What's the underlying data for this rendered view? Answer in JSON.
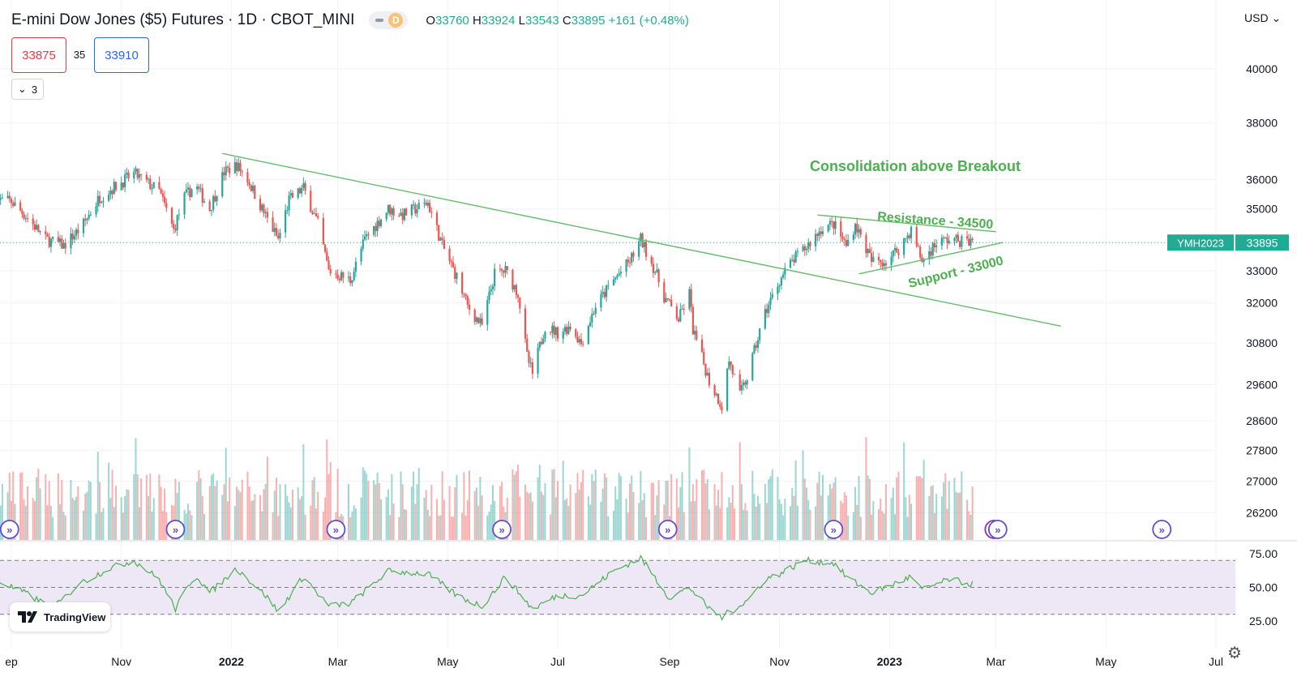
{
  "header": {
    "title": "E-mini Dow Jones ($5) Futures · 1D · CBOT_MINI",
    "badge_letter": "D",
    "ohlc": {
      "o_label": "O",
      "o": "33760",
      "h_label": "H",
      "h": "33924",
      "l_label": "L",
      "l": "33543",
      "c_label": "C",
      "c": "33895",
      "change": "+161 (+0.48%)"
    }
  },
  "trade": {
    "sell_price": "33875",
    "spread": "35",
    "buy_price": "33910"
  },
  "indicators_toggle": {
    "count": "3"
  },
  "currency_label": "USD",
  "settings_icon": "gear-icon",
  "logo": {
    "text": "TradingView"
  },
  "colors": {
    "up": "#26a69a",
    "down": "#ef5350",
    "trend": "#66bb6a",
    "annotation": "#4caf50",
    "price_tag": "#22ab94",
    "sell": "#f23645",
    "buy": "#2962ff",
    "rsi": "#4caf50",
    "rsi_band": "#ede7f6"
  },
  "chart_data": [
    {
      "type": "candlestick",
      "instrument": "YMH2023",
      "last_price": "33895",
      "y_scale": "log",
      "y_ticks": [
        40000,
        38000,
        36000,
        35000,
        33000,
        32000,
        30800,
        29600,
        28600,
        27800,
        27000,
        26200
      ],
      "x_ticks": [
        {
          "date": "2021-09-01",
          "label": "ep"
        },
        {
          "date": "2021-11-01",
          "label": "Nov"
        },
        {
          "date": "2022-01-01",
          "label": "2022",
          "bold": true
        },
        {
          "date": "2022-03-01",
          "label": "Mar"
        },
        {
          "date": "2022-05-01",
          "label": "May"
        },
        {
          "date": "2022-07-01",
          "label": "Jul"
        },
        {
          "date": "2022-09-01",
          "label": "Sep"
        },
        {
          "date": "2022-11-01",
          "label": "Nov"
        },
        {
          "date": "2023-01-01",
          "label": "2023",
          "bold": true
        },
        {
          "date": "2023-03-01",
          "label": "Mar"
        },
        {
          "date": "2023-05-01",
          "label": "May"
        },
        {
          "date": "2023-07-01",
          "label": "Jul"
        }
      ],
      "price_path": [
        [
          "2021-08-24",
          35300
        ],
        [
          "2021-09-01",
          35250
        ],
        [
          "2021-09-10",
          34700
        ],
        [
          "2021-09-20",
          34000
        ],
        [
          "2021-09-30",
          33800
        ],
        [
          "2021-10-10",
          34400
        ],
        [
          "2021-10-20",
          35400
        ],
        [
          "2021-11-01",
          35900
        ],
        [
          "2021-11-08",
          36200
        ],
        [
          "2021-11-15",
          35900
        ],
        [
          "2021-11-22",
          35600
        ],
        [
          "2021-11-30",
          34300
        ],
        [
          "2021-12-06",
          35400
        ],
        [
          "2021-12-12",
          35800
        ],
        [
          "2021-12-20",
          35000
        ],
        [
          "2021-12-28",
          36250
        ],
        [
          "2022-01-04",
          36500
        ],
        [
          "2022-01-10",
          36000
        ],
        [
          "2022-01-18",
          35000
        ],
        [
          "2022-01-27",
          34000
        ],
        [
          "2022-02-02",
          35300
        ],
        [
          "2022-02-10",
          35700
        ],
        [
          "2022-02-18",
          34500
        ],
        [
          "2022-02-24",
          33000
        ],
        [
          "2022-03-08",
          32700
        ],
        [
          "2022-03-16",
          34000
        ],
        [
          "2022-03-29",
          35000
        ],
        [
          "2022-04-06",
          34800
        ],
        [
          "2022-04-20",
          35200
        ],
        [
          "2022-04-28",
          33800
        ],
        [
          "2022-05-06",
          32800
        ],
        [
          "2022-05-12",
          31900
        ],
        [
          "2022-05-20",
          31300
        ],
        [
          "2022-05-27",
          32900
        ],
        [
          "2022-06-02",
          33000
        ],
        [
          "2022-06-09",
          32300
        ],
        [
          "2022-06-14",
          30400
        ],
        [
          "2022-06-17",
          29900
        ],
        [
          "2022-06-24",
          31300
        ],
        [
          "2022-07-01",
          31100
        ],
        [
          "2022-07-08",
          31300
        ],
        [
          "2022-07-14",
          30800
        ],
        [
          "2022-07-22",
          31900
        ],
        [
          "2022-08-01",
          32700
        ],
        [
          "2022-08-10",
          33300
        ],
        [
          "2022-08-16",
          34000
        ],
        [
          "2022-08-24",
          33000
        ],
        [
          "2022-08-29",
          32200
        ],
        [
          "2022-09-06",
          31500
        ],
        [
          "2022-09-12",
          32300
        ],
        [
          "2022-09-14",
          31200
        ],
        [
          "2022-09-23",
          29700
        ],
        [
          "2022-09-30",
          29000
        ],
        [
          "2022-10-04",
          30300
        ],
        [
          "2022-10-10",
          29300
        ],
        [
          "2022-10-14",
          29800
        ],
        [
          "2022-10-24",
          31700
        ],
        [
          "2022-11-01",
          32700
        ],
        [
          "2022-11-08",
          33300
        ],
        [
          "2022-11-15",
          33700
        ],
        [
          "2022-11-25",
          34400
        ],
        [
          "2022-12-01",
          34500
        ],
        [
          "2022-12-08",
          33800
        ],
        [
          "2022-12-13",
          34500
        ],
        [
          "2022-12-22",
          33300
        ],
        [
          "2022-12-30",
          33300
        ],
        [
          "2023-01-06",
          33700
        ],
        [
          "2023-01-13",
          34300
        ],
        [
          "2023-01-19",
          33300
        ],
        [
          "2023-01-27",
          33900
        ],
        [
          "2023-02-03",
          34000
        ],
        [
          "2023-02-10",
          33950
        ],
        [
          "2023-02-17",
          33895
        ]
      ],
      "trendlines": [
        {
          "name": "downtrend",
          "from": [
            "2021-12-27",
            36900
          ],
          "to": [
            "2023-04-06",
            31300
          ]
        },
        {
          "name": "resistance",
          "from": [
            "2022-11-22",
            34800
          ],
          "to": [
            "2023-03-01",
            34250
          ]
        },
        {
          "name": "support",
          "from": [
            "2022-12-15",
            32900
          ],
          "to": [
            "2023-03-05",
            33900
          ]
        }
      ],
      "annotations": {
        "headline": "Consolidation above Breakout",
        "resistance": "Resistance - 34500",
        "support": "Support - 33000"
      },
      "event_markers": [
        {
          "date": "2021-08-31",
          "kind": "dividend"
        },
        {
          "date": "2021-12-01",
          "kind": "dividend"
        },
        {
          "date": "2022-02-28",
          "kind": "dividend"
        },
        {
          "date": "2022-05-31",
          "kind": "dividend"
        },
        {
          "date": "2022-08-31",
          "kind": "dividend"
        },
        {
          "date": "2022-12-01",
          "kind": "dividend"
        },
        {
          "date": "2023-02-28",
          "kind": "earnings"
        },
        {
          "date": "2023-03-02",
          "kind": "dividend"
        },
        {
          "date": "2023-06-01",
          "kind": "dividend"
        }
      ]
    },
    {
      "type": "line",
      "name": "RSI",
      "y_ticks": [
        "75.00",
        "50.00",
        "25.00"
      ],
      "levels": [
        70,
        50,
        30
      ],
      "band": [
        30,
        70
      ],
      "rsi_path": [
        [
          "2021-08-24",
          55
        ],
        [
          "2021-09-10",
          45
        ],
        [
          "2021-09-24",
          34
        ],
        [
          "2021-10-08",
          52
        ],
        [
          "2021-10-25",
          64
        ],
        [
          "2021-11-08",
          70
        ],
        [
          "2021-11-22",
          56
        ],
        [
          "2021-12-01",
          34
        ],
        [
          "2021-12-12",
          60
        ],
        [
          "2021-12-20",
          46
        ],
        [
          "2022-01-04",
          64
        ],
        [
          "2022-01-20",
          44
        ],
        [
          "2022-01-27",
          32
        ],
        [
          "2022-02-10",
          58
        ],
        [
          "2022-02-24",
          36
        ],
        [
          "2022-03-08",
          38
        ],
        [
          "2022-03-29",
          62
        ],
        [
          "2022-04-20",
          60
        ],
        [
          "2022-05-06",
          44
        ],
        [
          "2022-05-20",
          36
        ],
        [
          "2022-06-02",
          58
        ],
        [
          "2022-06-17",
          34
        ],
        [
          "2022-07-01",
          44
        ],
        [
          "2022-07-14",
          44
        ],
        [
          "2022-08-01",
          62
        ],
        [
          "2022-08-16",
          72
        ],
        [
          "2022-09-01",
          42
        ],
        [
          "2022-09-12",
          50
        ],
        [
          "2022-09-23",
          34
        ],
        [
          "2022-09-30",
          28
        ],
        [
          "2022-10-14",
          40
        ],
        [
          "2022-10-24",
          56
        ],
        [
          "2022-11-01",
          60
        ],
        [
          "2022-11-15",
          70
        ],
        [
          "2022-12-01",
          68
        ],
        [
          "2022-12-08",
          58
        ],
        [
          "2022-12-22",
          46
        ],
        [
          "2023-01-06",
          54
        ],
        [
          "2023-01-13",
          58
        ],
        [
          "2023-01-19",
          48
        ],
        [
          "2023-02-03",
          56
        ],
        [
          "2023-02-17",
          52
        ]
      ]
    }
  ]
}
